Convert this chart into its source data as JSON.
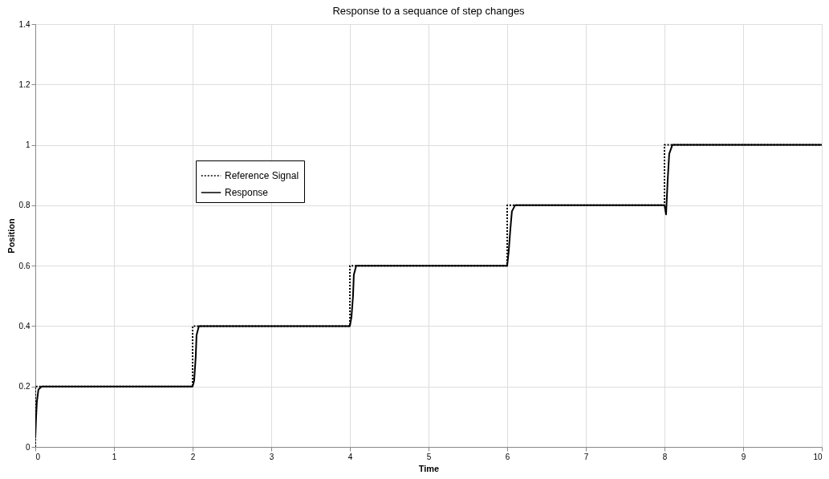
{
  "chart_data": {
    "type": "line",
    "title": "Response to a sequance of step changes",
    "xlabel": "Time",
    "ylabel": "Position",
    "xlim": [
      0,
      10
    ],
    "xticks": [
      0,
      1,
      2,
      3,
      4,
      5,
      6,
      7,
      8,
      9,
      10
    ],
    "ylim": [
      0,
      1.4
    ],
    "yticks": [
      0,
      0.2,
      0.4,
      0.6,
      0.8,
      1,
      1.2,
      1.4
    ],
    "grid": true,
    "legend": "left",
    "series": [
      {
        "name": "Reference Signal",
        "color": "#000000",
        "line_style": "dotted",
        "x": [
          0,
          0,
          2,
          2,
          4,
          4,
          6,
          6,
          8,
          8,
          10
        ],
        "values": [
          0,
          0.2,
          0.2,
          0.4,
          0.4,
          0.6,
          0.6,
          0.8,
          0.8,
          1,
          1
        ]
      },
      {
        "name": "Response",
        "color": "#000000",
        "line_style": "solid",
        "x": [
          0,
          0.01,
          0.02,
          0.04,
          0.08,
          2,
          2.02,
          2.04,
          2.05,
          2.08,
          2.12,
          4,
          4.02,
          4.04,
          4.05,
          4.08,
          4.12,
          6,
          6.02,
          6.04,
          6.06,
          6.1,
          6.15,
          8,
          8.02,
          8.04,
          8.06,
          8.1,
          8.15,
          10
        ],
        "values": [
          0.03,
          0.1,
          0.15,
          0.19,
          0.2,
          0.2,
          0.22,
          0.3,
          0.37,
          0.4,
          0.4,
          0.4,
          0.43,
          0.5,
          0.57,
          0.6,
          0.6,
          0.6,
          0.65,
          0.72,
          0.78,
          0.8,
          0.8,
          0.8,
          0.77,
          0.88,
          0.97,
          1,
          1,
          1
        ]
      }
    ]
  }
}
